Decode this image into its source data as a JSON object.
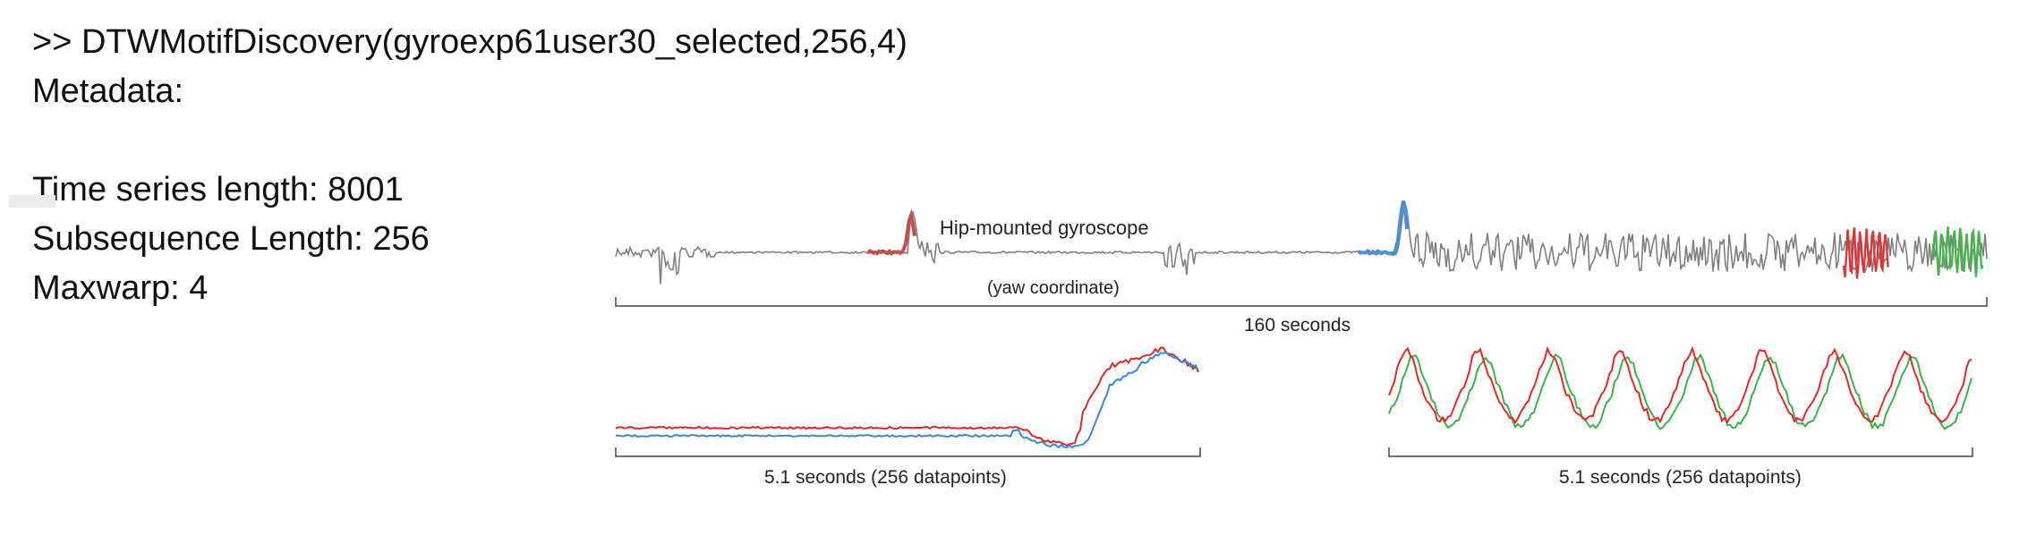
{
  "console": {
    "command": ">> DTWMotifDiscovery(gyroexp61user30_selected,256,4)",
    "metadata_label": "Metadata:",
    "ts_length_label": "Time series length: 8001",
    "subseq_label": "Subsequence Length: 256",
    "maxwarp_label": "Maxwarp: 4"
  },
  "chart_data": [
    {
      "type": "line",
      "annotations": [
        "Hip-mounted gyroscope",
        "(yaw coordinate)"
      ],
      "xlabel": "160 seconds",
      "series": [
        {
          "color": "#7f7f7f"
        },
        {
          "color": "#c0504d"
        },
        {
          "color": "#4f8fd0"
        },
        {
          "color": "#d63b3b"
        },
        {
          "color": "#4caf50"
        }
      ]
    },
    {
      "type": "line",
      "xlabel": "5.1 seconds (256 datapoints)",
      "series": [
        {
          "color": "#d62a2a"
        },
        {
          "color": "#3a85d4"
        }
      ]
    },
    {
      "type": "line",
      "xlabel": "5.1 seconds (256 datapoints)",
      "series": [
        {
          "color": "#e02a2a"
        },
        {
          "color": "#3fae4a"
        }
      ]
    }
  ]
}
